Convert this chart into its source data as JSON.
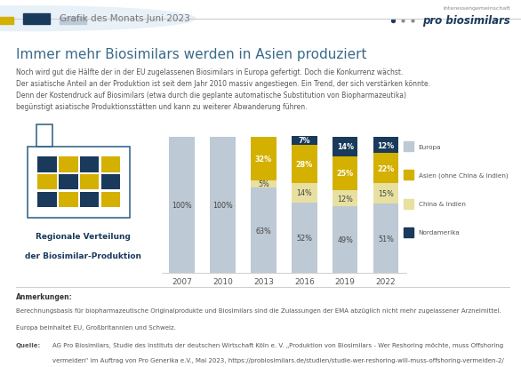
{
  "years": [
    "2007",
    "2010",
    "2013",
    "2016",
    "2019",
    "2022"
  ],
  "europa": [
    100,
    100,
    63,
    52,
    49,
    51
  ],
  "china_indien": [
    0,
    0,
    5,
    14,
    12,
    15
  ],
  "asien": [
    0,
    0,
    32,
    28,
    25,
    22
  ],
  "nordamerika": [
    0,
    0,
    0,
    7,
    14,
    12
  ],
  "colors": {
    "europa": "#bdc9d4",
    "china_indien": "#e8e0a0",
    "asien": "#d4b000",
    "nordamerika": "#1a3a5c"
  },
  "labels": {
    "europa": "Europa",
    "china_indien": "China & Indien",
    "asien": "Asien (ohne China & Indien)",
    "nordamerika": "Nordamerika"
  },
  "title": "Immer mehr Biosimilars werden in Asien produziert",
  "subtitle_lines": [
    "Noch wird gut die Hälfte der in der EU zugelassenen Biosimilars in Europa gefertigt. Doch die Konkurrenz wächst.",
    "Der asiatische Anteil an der Produktion ist seit dem Jahr 2010 massiv angestiegen. Ein Trend, der sich verstärken könnte.",
    "Denn der Kostendruck auf Biosimilars (etwa durch die geplante automatische Substitution von Biopharmazeutika)",
    "begünstigt asiatische Produktionsstätten und kann zu weiterer Abwanderung führen."
  ],
  "header": "Grafik des Monats Juni 2023",
  "sidebar_label_line1": "Regionale Verteilung",
  "sidebar_label_line2": "der Biosimilar-Produktion",
  "note_title": "Anmerkungen:",
  "note_lines": [
    "Berechnungsbasis für biopharmazeutische Originalprodukte und Biosimilars sind die Zulassungen der EMA abzüglich nicht mehr zugelassener Arzneimittel.",
    "Europa beinhaltet EU, Großbritannien und Schweiz."
  ],
  "source_label": "Quelle:",
  "source_text": "AG Pro Biosimilars, Studie des Instituts der deutschen Wirtschaft Köln e. V. „Produktion von Biosimilars - Wer Reshoring möchte, muss Offshoring",
  "source_text2": "vermeiden“ im Auftrag von Pro Generika e.V., Mai 2023, https://probiosimilars.de/studien/studie-wer-reshoring-will-muss-offshoring-vermeiden-2/",
  "bg_color": "#ffffff",
  "title_color": "#3a6a8a",
  "text_color": "#555555",
  "dark_text": "#333333",
  "header_text_color": "#777777"
}
